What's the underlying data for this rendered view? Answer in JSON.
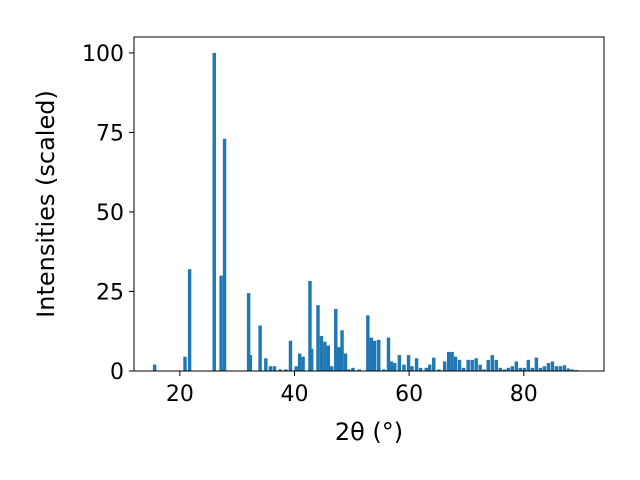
{
  "chart_data": {
    "type": "bar",
    "title": "",
    "xlabel": "2θ (°)",
    "ylabel": "Intensities (scaled)",
    "xlim": [
      12,
      94
    ],
    "ylim": [
      0,
      105
    ],
    "xticks": [
      20,
      40,
      60,
      80
    ],
    "yticks": [
      0,
      25,
      50,
      75,
      100
    ],
    "bar_color": "#1f77b4",
    "bar_width_deg": 0.6,
    "grid": false,
    "x": [
      15.6,
      20.9,
      21.7,
      26.0,
      27.2,
      27.8,
      32.0,
      32.3,
      34.0,
      35.0,
      35.8,
      36.5,
      37.5,
      38.5,
      39.3,
      40.3,
      40.9,
      41.5,
      42.7,
      43.0,
      44.1,
      44.7,
      45.3,
      45.9,
      46.5,
      47.2,
      47.8,
      48.3,
      48.9,
      49.5,
      50.2,
      51.3,
      52.8,
      53.4,
      54.0,
      54.7,
      55.6,
      56.4,
      56.9,
      57.5,
      58.3,
      59.1,
      59.9,
      60.5,
      61.3,
      62.0,
      63.0,
      63.6,
      64.3,
      65.2,
      66.2,
      66.9,
      67.5,
      68.1,
      68.8,
      69.5,
      70.3,
      71.0,
      71.7,
      72.4,
      73.1,
      73.8,
      74.5,
      75.2,
      75.9,
      76.6,
      77.3,
      78.0,
      78.7,
      79.4,
      80.1,
      80.8,
      81.5,
      82.2,
      82.9,
      83.6,
      84.3,
      85.0,
      85.7,
      86.4,
      87.1,
      87.8,
      88.5,
      89.2
    ],
    "values": [
      2,
      4.5,
      32,
      100,
      30,
      73,
      24.5,
      5,
      14.3,
      4,
      1.5,
      1.5,
      0.5,
      0.5,
      9.5,
      1.5,
      5.5,
      4.5,
      28.3,
      7,
      20.7,
      11,
      9.2,
      8,
      1.5,
      19.5,
      7.5,
      12.8,
      5.5,
      0.5,
      1,
      0.5,
      17.5,
      10.5,
      9.5,
      9.8,
      0.5,
      10.5,
      3,
      2.5,
      5,
      2,
      5,
      1.5,
      4,
      1,
      1,
      2,
      4.2,
      0.5,
      3,
      6,
      6,
      4.5,
      3.5,
      1,
      3.5,
      3.5,
      4,
      2,
      0.5,
      3.5,
      5,
      3.5,
      1,
      0.5,
      1,
      1.5,
      3,
      1,
      1,
      3.5,
      1,
      4.2,
      1,
      1.5,
      2.5,
      3,
      1.5,
      1.5,
      1.8,
      0.8,
      0.5,
      0.3
    ]
  }
}
